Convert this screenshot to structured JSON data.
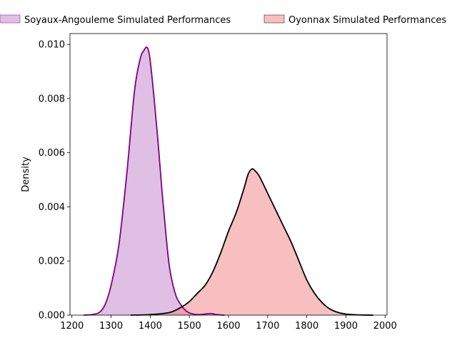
{
  "chart_data": {
    "type": "area",
    "xlabel": "",
    "ylabel": "Density",
    "xlim": [
      1195,
      2005
    ],
    "ylim": [
      0,
      0.0104
    ],
    "xticks": [
      1200,
      1300,
      1400,
      1500,
      1600,
      1700,
      1800,
      1900,
      2000
    ],
    "yticks": [
      0.0,
      0.002,
      0.004,
      0.006,
      0.008,
      0.01
    ],
    "ytick_labels": [
      "0.000",
      "0.002",
      "0.004",
      "0.006",
      "0.008",
      "0.010"
    ],
    "grid": false,
    "legend_position": "top",
    "series": [
      {
        "name": "Soyaux-Angouleme Simulated Performances",
        "fill_color": "#c080c8",
        "line_color": "#800080",
        "x": [
          1230,
          1250,
          1270,
          1285,
          1300,
          1320,
          1340,
          1360,
          1375,
          1385,
          1390,
          1395,
          1400,
          1410,
          1420,
          1430,
          1440,
          1450,
          1465,
          1480,
          1495,
          1510,
          1525,
          1540,
          1555,
          1570,
          1590
        ],
        "y": [
          0.0,
          2e-05,
          0.0001,
          0.0004,
          0.0011,
          0.0026,
          0.0052,
          0.0083,
          0.0095,
          0.0098,
          0.0099,
          0.0098,
          0.0094,
          0.008,
          0.0064,
          0.0046,
          0.003,
          0.0017,
          0.00075,
          0.00035,
          0.00012,
          4e-05,
          2e-05,
          4e-05,
          6e-05,
          2e-05,
          0.0
        ]
      },
      {
        "name": "Oyonnax Simulated Performances",
        "fill_color": "#f08080",
        "line_color": "#000000",
        "x": [
          1350,
          1400,
          1450,
          1480,
          1500,
          1520,
          1540,
          1560,
          1580,
          1600,
          1620,
          1640,
          1650,
          1660,
          1670,
          1680,
          1700,
          1720,
          1740,
          1760,
          1780,
          1800,
          1820,
          1840,
          1860,
          1880,
          1900,
          1930,
          1970
        ],
        "y": [
          0.0,
          2e-05,
          0.0001,
          0.0003,
          0.0005,
          0.0008,
          0.0011,
          0.0016,
          0.0023,
          0.0031,
          0.0038,
          0.0047,
          0.0052,
          0.0054,
          0.0053,
          0.0051,
          0.0045,
          0.0039,
          0.0033,
          0.0027,
          0.002,
          0.0013,
          0.0008,
          0.00045,
          0.00022,
          0.0001,
          4e-05,
          1e-05,
          0.0
        ]
      }
    ]
  }
}
